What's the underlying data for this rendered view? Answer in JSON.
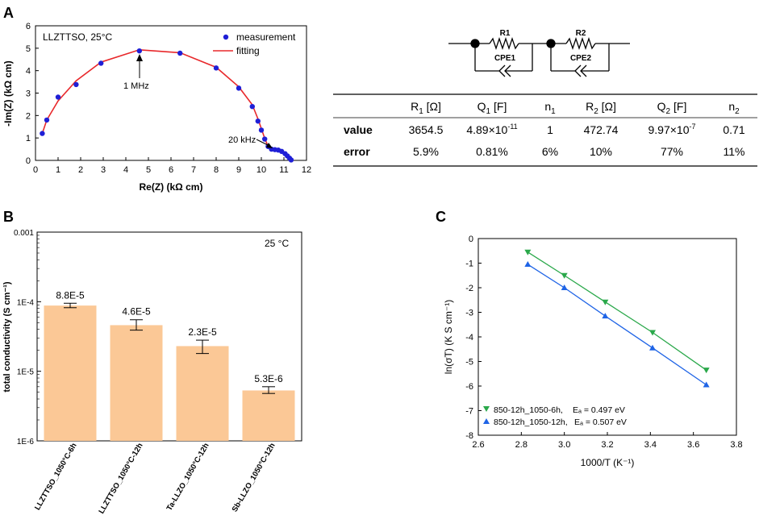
{
  "panel_labels": {
    "a": "A",
    "b": "B",
    "c": "C"
  },
  "circuit": {
    "r1": "R1",
    "r2": "R2",
    "cpe1": "CPE1",
    "cpe2": "CPE2"
  },
  "fit_table": {
    "headers": [
      {
        "main": "R",
        "sub": "1",
        "unit": " [Ω]"
      },
      {
        "main": "Q",
        "sub": "1",
        "unit": " [F]"
      },
      {
        "main": "n",
        "sub": "1",
        "unit": ""
      },
      {
        "main": "R",
        "sub": "2",
        "unit": " [Ω]"
      },
      {
        "main": "Q",
        "sub": "2",
        "unit": " [F]"
      },
      {
        "main": "n",
        "sub": "2",
        "unit": ""
      }
    ],
    "rows": [
      {
        "label": "value",
        "cells": [
          {
            "text": "3654.5"
          },
          {
            "text": "4.89×10",
            "sup": "-11"
          },
          {
            "text": "1"
          },
          {
            "text": "472.74"
          },
          {
            "text": "9.97×10",
            "sup": "-7"
          },
          {
            "text": "0.71"
          }
        ]
      },
      {
        "label": "error",
        "cells": [
          {
            "text": "5.9%"
          },
          {
            "text": "0.81%"
          },
          {
            "text": "6%"
          },
          {
            "text": "10%"
          },
          {
            "text": "77%"
          },
          {
            "text": "11%"
          }
        ]
      }
    ]
  },
  "chart_data": [
    {
      "id": "A",
      "type": "scatter",
      "title": "LLZTTSO, 25°C",
      "xlabel": "Re(Z) (kΩ cm)",
      "ylabel": "-Im(Z) (kΩ cm)",
      "xlim": [
        0,
        12
      ],
      "ylim": [
        0,
        6
      ],
      "xticks": [
        0,
        1,
        2,
        3,
        4,
        5,
        6,
        7,
        8,
        9,
        10,
        11,
        12
      ],
      "yticks": [
        0,
        1,
        2,
        3,
        4,
        5,
        6
      ],
      "legend": [
        "measurement",
        "fitting"
      ],
      "series": [
        {
          "name": "measurement",
          "x": [
            0.3,
            0.5,
            1.0,
            1.8,
            2.9,
            4.6,
            6.4,
            8.0,
            9.0,
            9.6,
            9.85,
            10.0,
            10.15,
            10.3,
            10.45,
            10.6,
            10.75,
            10.9,
            11.05,
            11.15,
            11.25,
            11.32
          ],
          "y": [
            1.2,
            1.8,
            2.82,
            3.38,
            4.33,
            4.88,
            4.78,
            4.12,
            3.22,
            2.4,
            1.75,
            1.35,
            0.95,
            0.62,
            0.5,
            0.48,
            0.46,
            0.4,
            0.3,
            0.2,
            0.1,
            0.02
          ]
        },
        {
          "name": "fitting",
          "x": [
            0.3,
            0.5,
            1.0,
            1.8,
            2.9,
            4.6,
            6.4,
            8.0,
            9.0,
            9.6,
            9.85,
            10.0,
            10.15,
            10.3,
            10.45,
            10.6,
            10.75,
            10.9,
            11.05,
            11.15,
            11.25,
            11.32
          ],
          "y": [
            1.2,
            1.8,
            2.65,
            3.55,
            4.38,
            4.93,
            4.8,
            4.15,
            3.28,
            2.48,
            1.85,
            1.42,
            0.98,
            0.62,
            0.5,
            0.47,
            0.45,
            0.4,
            0.3,
            0.2,
            0.1,
            0.02
          ]
        }
      ],
      "annotations": [
        {
          "text": "1 MHz",
          "x": 4.6,
          "y": 4.88
        },
        {
          "text": "20 kHz",
          "x": 10.1,
          "y": 1.0
        }
      ],
      "colors": {
        "measurement": "#1f1fd6",
        "fitting": "#e8282b"
      }
    },
    {
      "id": "B",
      "type": "bar",
      "yscale": "log",
      "ylim": [
        1e-06,
        0.001
      ],
      "yticks": [
        1e-06,
        1e-05,
        0.0001,
        0.001
      ],
      "ytick_labels": [
        "1E-6",
        "1E-5",
        "1E-4",
        "0.001"
      ],
      "ylabel": "total conductivity (S cm⁻¹)",
      "annotation": "25 °C",
      "categories": [
        "LLZTTSO_1050°C-6h",
        "LLZTTSO_1050°C-12h",
        "Ta-LLZO_1050°C-12h",
        "Sb-LLZO_1050°C-12h"
      ],
      "values": [
        8.8e-05,
        4.6e-05,
        2.3e-05,
        5.3e-06
      ],
      "value_labels": [
        "8.8E-5",
        "4.6E-5",
        "2.3E-5",
        "5.3E-6"
      ],
      "error_low": [
        8.2e-05,
        3.9e-05,
        1.8e-05,
        4.8e-06
      ],
      "error_high": [
        9.5e-05,
        5.5e-05,
        2.8e-05,
        6e-06
      ],
      "colors": {
        "bar": "#fbc896"
      }
    },
    {
      "id": "C",
      "type": "line",
      "xlabel": "1000/T (K⁻¹)",
      "ylabel": "ln(σT) (K S cm⁻¹)",
      "xlim": [
        2.6,
        3.8
      ],
      "ylim": [
        -8,
        0
      ],
      "xticks": [
        2.6,
        2.8,
        3.0,
        3.2,
        3.4,
        3.6,
        3.8
      ],
      "yticks": [
        0,
        -1,
        -2,
        -3,
        -4,
        -5,
        -6,
        -7,
        -8
      ],
      "series": [
        {
          "name": "850-12h_1050-6h,",
          "ea": "Eₐ = 0.497 eV",
          "x": [
            2.83,
            3.0,
            3.19,
            3.41,
            3.66
          ],
          "y": [
            -0.55,
            -1.5,
            -2.58,
            -3.82,
            -5.35
          ],
          "color": "#2aa84a",
          "marker": "triangle-down"
        },
        {
          "name": "850-12h_1050-12h,",
          "ea": "Eₐ = 0.507 eV",
          "x": [
            2.83,
            3.0,
            3.19,
            3.41,
            3.66
          ],
          "y": [
            -1.05,
            -2.0,
            -3.15,
            -4.45,
            -5.95
          ],
          "color": "#1f64e6",
          "marker": "triangle-up"
        }
      ]
    }
  ]
}
